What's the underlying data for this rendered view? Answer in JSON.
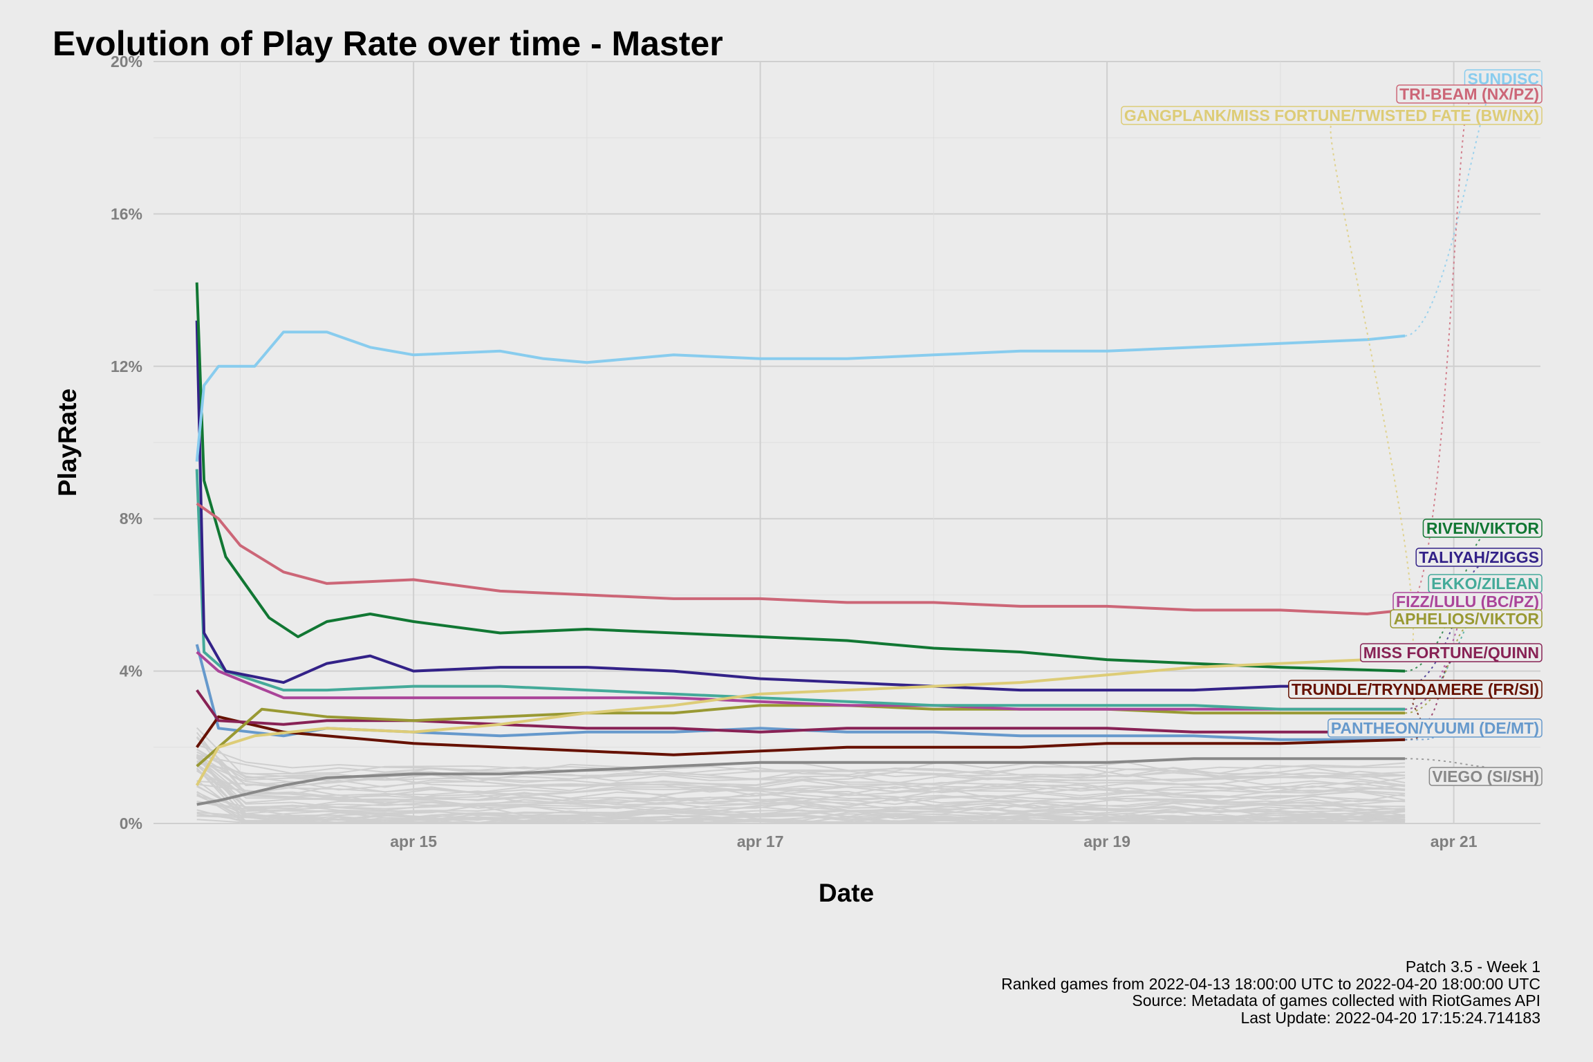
{
  "chart_data": {
    "type": "line",
    "title": "Evolution of Play Rate over time - Master",
    "xlabel": "Date",
    "ylabel": "PlayRate",
    "x_ticks": [
      {
        "date": "2022-04-15",
        "label": "apr 15"
      },
      {
        "date": "2022-04-17",
        "label": "apr 17"
      },
      {
        "date": "2022-04-19",
        "label": "apr 19"
      },
      {
        "date": "2022-04-21",
        "label": "apr 21"
      }
    ],
    "y_ticks": [
      "0%",
      "4%",
      "8%",
      "12%",
      "16%",
      "20%"
    ],
    "xlim": [
      "2022-04-13 12:00",
      "2022-04-21 12:00"
    ],
    "ylim": [
      0,
      20
    ],
    "grid": true,
    "legend": "direct labels at right",
    "series": [
      {
        "name": "SUNDISC",
        "color": "#88ccee",
        "points": [
          [
            "2022-04-13 18:00",
            9.5
          ],
          [
            "2022-04-13 19:00",
            11.5
          ],
          [
            "2022-04-13 21:00",
            12.0
          ],
          [
            "2022-04-14 02:00",
            12.0
          ],
          [
            "2022-04-14 06:00",
            12.9
          ],
          [
            "2022-04-14 12:00",
            12.9
          ],
          [
            "2022-04-14 18:00",
            12.5
          ],
          [
            "2022-04-15 00:00",
            12.3
          ],
          [
            "2022-04-15 12:00",
            12.4
          ],
          [
            "2022-04-15 18:00",
            12.2
          ],
          [
            "2022-04-16 00:00",
            12.1
          ],
          [
            "2022-04-16 12:00",
            12.3
          ],
          [
            "2022-04-17 00:00",
            12.2
          ],
          [
            "2022-04-17 12:00",
            12.2
          ],
          [
            "2022-04-18 00:00",
            12.3
          ],
          [
            "2022-04-18 12:00",
            12.4
          ],
          [
            "2022-04-19 00:00",
            12.4
          ],
          [
            "2022-04-19 12:00",
            12.5
          ],
          [
            "2022-04-20 00:00",
            12.6
          ],
          [
            "2022-04-20 12:00",
            12.7
          ],
          [
            "2022-04-20 17:15",
            12.8
          ]
        ]
      },
      {
        "name": "TRI-BEAM (NX/PZ)",
        "color": "#cc6677",
        "points": [
          [
            "2022-04-13 18:00",
            8.4
          ],
          [
            "2022-04-13 21:00",
            8.0
          ],
          [
            "2022-04-14 00:00",
            7.3
          ],
          [
            "2022-04-14 06:00",
            6.6
          ],
          [
            "2022-04-14 12:00",
            6.3
          ],
          [
            "2022-04-15 00:00",
            6.4
          ],
          [
            "2022-04-15 12:00",
            6.1
          ],
          [
            "2022-04-16 00:00",
            6.0
          ],
          [
            "2022-04-16 12:00",
            5.9
          ],
          [
            "2022-04-17 00:00",
            5.9
          ],
          [
            "2022-04-17 12:00",
            5.8
          ],
          [
            "2022-04-18 00:00",
            5.8
          ],
          [
            "2022-04-18 12:00",
            5.7
          ],
          [
            "2022-04-19 00:00",
            5.7
          ],
          [
            "2022-04-19 12:00",
            5.6
          ],
          [
            "2022-04-20 00:00",
            5.6
          ],
          [
            "2022-04-20 12:00",
            5.5
          ],
          [
            "2022-04-20 17:15",
            5.6
          ]
        ]
      },
      {
        "name": "GANGPLANK/MISS FORTUNE/TWISTED FATE (BW/NX)",
        "color": "#ddcc77",
        "points": [
          [
            "2022-04-13 18:00",
            1.0
          ],
          [
            "2022-04-13 21:00",
            2.0
          ],
          [
            "2022-04-14 02:00",
            2.3
          ],
          [
            "2022-04-14 12:00",
            2.5
          ],
          [
            "2022-04-15 00:00",
            2.4
          ],
          [
            "2022-04-15 12:00",
            2.6
          ],
          [
            "2022-04-16 00:00",
            2.9
          ],
          [
            "2022-04-16 12:00",
            3.1
          ],
          [
            "2022-04-17 00:00",
            3.4
          ],
          [
            "2022-04-17 12:00",
            3.5
          ],
          [
            "2022-04-18 00:00",
            3.6
          ],
          [
            "2022-04-18 12:00",
            3.7
          ],
          [
            "2022-04-19 00:00",
            3.9
          ],
          [
            "2022-04-19 12:00",
            4.1
          ],
          [
            "2022-04-20 00:00",
            4.2
          ],
          [
            "2022-04-20 12:00",
            4.3
          ],
          [
            "2022-04-20 17:15",
            4.3
          ]
        ]
      },
      {
        "name": "RIVEN/VIKTOR",
        "color": "#117733",
        "points": [
          [
            "2022-04-13 18:00",
            14.2
          ],
          [
            "2022-04-13 19:00",
            9.0
          ],
          [
            "2022-04-13 22:00",
            7.0
          ],
          [
            "2022-04-14 04:00",
            5.4
          ],
          [
            "2022-04-14 08:00",
            4.9
          ],
          [
            "2022-04-14 12:00",
            5.3
          ],
          [
            "2022-04-14 18:00",
            5.5
          ],
          [
            "2022-04-15 00:00",
            5.3
          ],
          [
            "2022-04-15 12:00",
            5.0
          ],
          [
            "2022-04-16 00:00",
            5.1
          ],
          [
            "2022-04-16 12:00",
            5.0
          ],
          [
            "2022-04-17 00:00",
            4.9
          ],
          [
            "2022-04-17 12:00",
            4.8
          ],
          [
            "2022-04-18 00:00",
            4.6
          ],
          [
            "2022-04-18 12:00",
            4.5
          ],
          [
            "2022-04-19 00:00",
            4.3
          ],
          [
            "2022-04-19 12:00",
            4.2
          ],
          [
            "2022-04-20 00:00",
            4.1
          ],
          [
            "2022-04-20 17:15",
            4.0
          ]
        ]
      },
      {
        "name": "TALIYAH/ZIGGS",
        "color": "#332288",
        "points": [
          [
            "2022-04-13 18:00",
            13.2
          ],
          [
            "2022-04-13 19:00",
            5.0
          ],
          [
            "2022-04-13 22:00",
            4.0
          ],
          [
            "2022-04-14 06:00",
            3.7
          ],
          [
            "2022-04-14 12:00",
            4.2
          ],
          [
            "2022-04-14 18:00",
            4.4
          ],
          [
            "2022-04-15 00:00",
            4.0
          ],
          [
            "2022-04-15 12:00",
            4.1
          ],
          [
            "2022-04-16 00:00",
            4.1
          ],
          [
            "2022-04-16 12:00",
            4.0
          ],
          [
            "2022-04-17 00:00",
            3.8
          ],
          [
            "2022-04-17 12:00",
            3.7
          ],
          [
            "2022-04-18 00:00",
            3.6
          ],
          [
            "2022-04-18 12:00",
            3.5
          ],
          [
            "2022-04-19 00:00",
            3.5
          ],
          [
            "2022-04-19 12:00",
            3.5
          ],
          [
            "2022-04-20 00:00",
            3.6
          ],
          [
            "2022-04-20 17:15",
            3.6
          ]
        ]
      },
      {
        "name": "EKKO/ZILEAN",
        "color": "#44aa99",
        "points": [
          [
            "2022-04-13 18:00",
            9.3
          ],
          [
            "2022-04-13 19:00",
            4.5
          ],
          [
            "2022-04-13 22:00",
            4.0
          ],
          [
            "2022-04-14 06:00",
            3.5
          ],
          [
            "2022-04-14 12:00",
            3.5
          ],
          [
            "2022-04-15 00:00",
            3.6
          ],
          [
            "2022-04-15 12:00",
            3.6
          ],
          [
            "2022-04-16 00:00",
            3.5
          ],
          [
            "2022-04-16 12:00",
            3.4
          ],
          [
            "2022-04-17 00:00",
            3.3
          ],
          [
            "2022-04-17 12:00",
            3.2
          ],
          [
            "2022-04-18 00:00",
            3.1
          ],
          [
            "2022-04-18 12:00",
            3.1
          ],
          [
            "2022-04-19 00:00",
            3.1
          ],
          [
            "2022-04-19 12:00",
            3.1
          ],
          [
            "2022-04-20 00:00",
            3.0
          ],
          [
            "2022-04-20 17:15",
            3.0
          ]
        ]
      },
      {
        "name": "FIZZ/LULU (BC/PZ)",
        "color": "#aa4499",
        "points": [
          [
            "2022-04-13 18:00",
            4.5
          ],
          [
            "2022-04-13 21:00",
            4.0
          ],
          [
            "2022-04-14 06:00",
            3.3
          ],
          [
            "2022-04-14 12:00",
            3.3
          ],
          [
            "2022-04-15 00:00",
            3.3
          ],
          [
            "2022-04-15 12:00",
            3.3
          ],
          [
            "2022-04-16 00:00",
            3.3
          ],
          [
            "2022-04-16 12:00",
            3.3
          ],
          [
            "2022-04-17 00:00",
            3.2
          ],
          [
            "2022-04-17 12:00",
            3.1
          ],
          [
            "2022-04-18 00:00",
            3.1
          ],
          [
            "2022-04-18 12:00",
            3.0
          ],
          [
            "2022-04-19 00:00",
            3.0
          ],
          [
            "2022-04-19 12:00",
            3.0
          ],
          [
            "2022-04-20 00:00",
            3.0
          ],
          [
            "2022-04-20 17:15",
            3.0
          ]
        ]
      },
      {
        "name": "APHELIOS/VIKTOR",
        "color": "#999933",
        "points": [
          [
            "2022-04-13 18:00",
            1.5
          ],
          [
            "2022-04-13 21:00",
            2.0
          ],
          [
            "2022-04-14 03:00",
            3.0
          ],
          [
            "2022-04-14 12:00",
            2.8
          ],
          [
            "2022-04-15 00:00",
            2.7
          ],
          [
            "2022-04-15 12:00",
            2.8
          ],
          [
            "2022-04-16 00:00",
            2.9
          ],
          [
            "2022-04-16 12:00",
            2.9
          ],
          [
            "2022-04-17 00:00",
            3.1
          ],
          [
            "2022-04-17 12:00",
            3.1
          ],
          [
            "2022-04-18 00:00",
            3.0
          ],
          [
            "2022-04-18 12:00",
            3.0
          ],
          [
            "2022-04-19 00:00",
            3.0
          ],
          [
            "2022-04-19 12:00",
            2.9
          ],
          [
            "2022-04-20 00:00",
            2.9
          ],
          [
            "2022-04-20 17:15",
            2.9
          ]
        ]
      },
      {
        "name": "MISS FORTUNE/QUINN",
        "color": "#882255",
        "points": [
          [
            "2022-04-13 18:00",
            3.5
          ],
          [
            "2022-04-13 21:00",
            2.7
          ],
          [
            "2022-04-14 06:00",
            2.6
          ],
          [
            "2022-04-14 12:00",
            2.7
          ],
          [
            "2022-04-15 00:00",
            2.7
          ],
          [
            "2022-04-15 12:00",
            2.6
          ],
          [
            "2022-04-16 00:00",
            2.5
          ],
          [
            "2022-04-16 12:00",
            2.5
          ],
          [
            "2022-04-17 00:00",
            2.4
          ],
          [
            "2022-04-17 12:00",
            2.5
          ],
          [
            "2022-04-18 00:00",
            2.5
          ],
          [
            "2022-04-18 12:00",
            2.5
          ],
          [
            "2022-04-19 00:00",
            2.5
          ],
          [
            "2022-04-19 12:00",
            2.4
          ],
          [
            "2022-04-20 00:00",
            2.4
          ],
          [
            "2022-04-20 17:15",
            2.4
          ]
        ]
      },
      {
        "name": "TRUNDLE/TRYNDAMERE (FR/SI)",
        "color": "#661100",
        "points": [
          [
            "2022-04-13 18:00",
            2.0
          ],
          [
            "2022-04-13 21:00",
            2.8
          ],
          [
            "2022-04-14 06:00",
            2.4
          ],
          [
            "2022-04-14 12:00",
            2.3
          ],
          [
            "2022-04-15 00:00",
            2.1
          ],
          [
            "2022-04-15 12:00",
            2.0
          ],
          [
            "2022-04-16 00:00",
            1.9
          ],
          [
            "2022-04-16 12:00",
            1.8
          ],
          [
            "2022-04-17 00:00",
            1.9
          ],
          [
            "2022-04-17 12:00",
            2.0
          ],
          [
            "2022-04-18 00:00",
            2.0
          ],
          [
            "2022-04-18 12:00",
            2.0
          ],
          [
            "2022-04-19 00:00",
            2.1
          ],
          [
            "2022-04-19 12:00",
            2.1
          ],
          [
            "2022-04-20 00:00",
            2.1
          ],
          [
            "2022-04-20 17:15",
            2.2
          ]
        ]
      },
      {
        "name": "PANTHEON/YUUMI (DE/MT)",
        "color": "#6699cc",
        "points": [
          [
            "2022-04-13 18:00",
            4.7
          ],
          [
            "2022-04-13 21:00",
            2.5
          ],
          [
            "2022-04-14 06:00",
            2.3
          ],
          [
            "2022-04-14 12:00",
            2.5
          ],
          [
            "2022-04-15 00:00",
            2.4
          ],
          [
            "2022-04-15 12:00",
            2.3
          ],
          [
            "2022-04-16 00:00",
            2.4
          ],
          [
            "2022-04-16 12:00",
            2.4
          ],
          [
            "2022-04-17 00:00",
            2.5
          ],
          [
            "2022-04-17 12:00",
            2.4
          ],
          [
            "2022-04-18 00:00",
            2.4
          ],
          [
            "2022-04-18 12:00",
            2.3
          ],
          [
            "2022-04-19 00:00",
            2.3
          ],
          [
            "2022-04-19 12:00",
            2.3
          ],
          [
            "2022-04-20 00:00",
            2.2
          ],
          [
            "2022-04-20 17:15",
            2.2
          ]
        ]
      },
      {
        "name": "VIEGO (SI/SH)",
        "color": "#888888",
        "points": [
          [
            "2022-04-13 18:00",
            0.5
          ],
          [
            "2022-04-13 21:00",
            0.6
          ],
          [
            "2022-04-14 06:00",
            1.0
          ],
          [
            "2022-04-14 12:00",
            1.2
          ],
          [
            "2022-04-15 00:00",
            1.3
          ],
          [
            "2022-04-15 12:00",
            1.3
          ],
          [
            "2022-04-16 00:00",
            1.4
          ],
          [
            "2022-04-16 12:00",
            1.5
          ],
          [
            "2022-04-17 00:00",
            1.6
          ],
          [
            "2022-04-17 12:00",
            1.6
          ],
          [
            "2022-04-18 00:00",
            1.6
          ],
          [
            "2022-04-18 12:00",
            1.6
          ],
          [
            "2022-04-19 00:00",
            1.6
          ],
          [
            "2022-04-19 12:00",
            1.7
          ],
          [
            "2022-04-20 00:00",
            1.7
          ],
          [
            "2022-04-20 17:15",
            1.7
          ]
        ]
      }
    ]
  },
  "caption": {
    "line1": "Patch 3.5 - Week 1",
    "line2": "Ranked games from 2022-04-13 18:00:00 UTC to 2022-04-20 18:00:00 UTC",
    "line3": "Source: Metadata of games collected with RiotGames API",
    "line4": "Last Update: 2022-04-20 17:15:24.714183"
  }
}
